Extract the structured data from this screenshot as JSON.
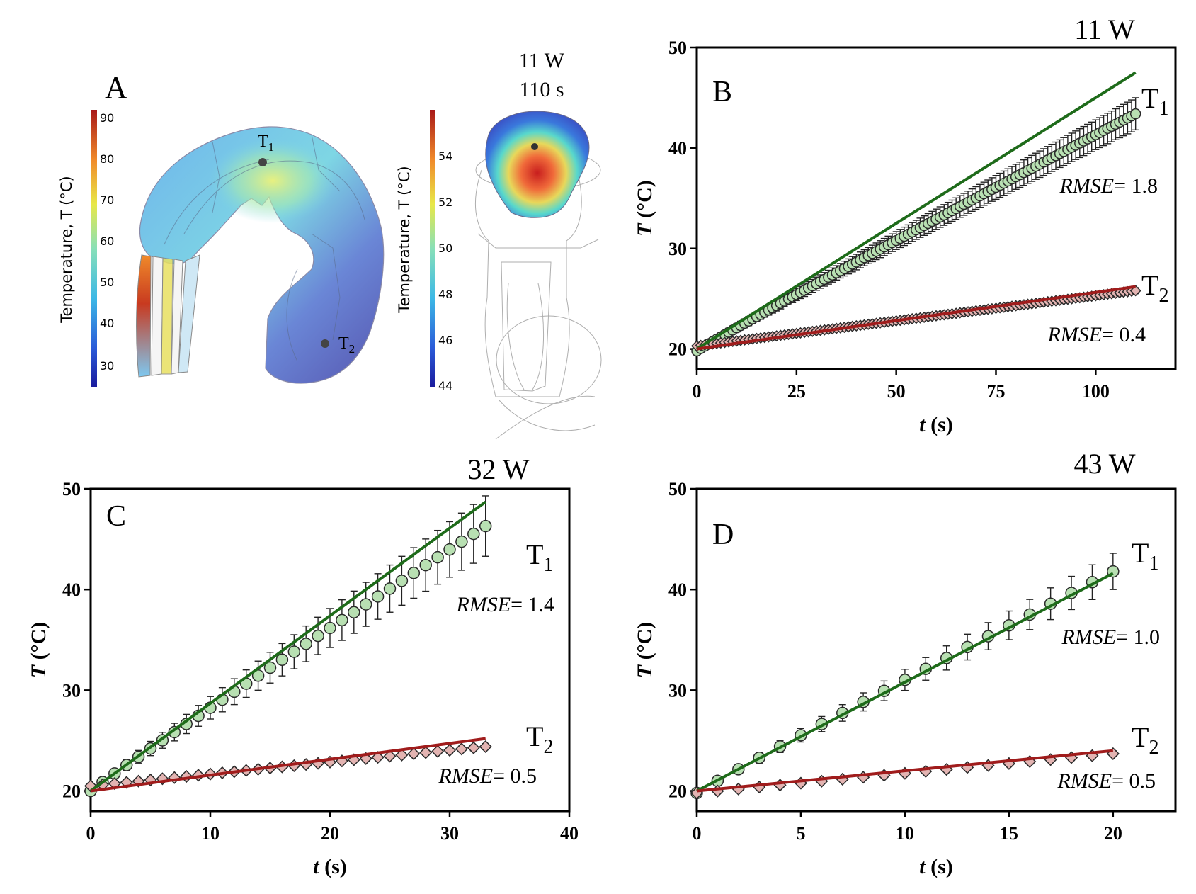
{
  "panel_a": {
    "letter": "A",
    "power_label": "11 W",
    "time_label": "110 s",
    "colorbar_left": {
      "label": "Temperature, T (°C)",
      "ticks": [
        "90",
        "80",
        "70",
        "60",
        "50",
        "40",
        "30"
      ]
    },
    "colorbar_right": {
      "label": "Temperature, T (°C)",
      "ticks": [
        "54",
        "52",
        "50",
        "48",
        "46",
        "44"
      ]
    },
    "probe_t1": {
      "main": "T",
      "sub": "1"
    },
    "probe_t2": {
      "main": "T",
      "sub": "2"
    }
  },
  "colors": {
    "model_t1": "#1e6b1a",
    "model_t2": "#a01c1c",
    "marker_t1": "#b8e0b2",
    "marker_t2": "#e3b4b2",
    "axis": "#000000"
  },
  "chart_data": [
    {
      "id": "B",
      "type": "line",
      "title": "11 W",
      "panel_letter": "B",
      "xlabel": "t (s)",
      "ylabel": "T (°C)",
      "xlim": [
        0,
        120
      ],
      "ylim": [
        18,
        50
      ],
      "xticks": [
        0,
        25,
        50,
        75,
        100
      ],
      "yticks": [
        20,
        30,
        40,
        50
      ],
      "x_max": 110,
      "dt": 1,
      "series": [
        {
          "name": "T1 measured",
          "label_main": "T",
          "label_sub": "1",
          "marker": "circle",
          "start": 19.8,
          "end": 43.4,
          "err_start": 0.3,
          "err_end": 1.6
        },
        {
          "name": "T2 measured",
          "label_main": "T",
          "label_sub": "2",
          "marker": "diamond",
          "start": 20.3,
          "end": 25.8,
          "err_start": 0.1,
          "err_end": 0.3
        }
      ],
      "models": [
        {
          "name": "T1 model",
          "x": [
            0,
            110
          ],
          "y": [
            20.0,
            47.5
          ]
        },
        {
          "name": "T2 model",
          "x": [
            0,
            110
          ],
          "y": [
            20.0,
            26.2
          ]
        }
      ],
      "annotations": {
        "rmse_t1": "RMSE= 1.8",
        "rmse_t2": "RMSE= 0.4"
      }
    },
    {
      "id": "C",
      "type": "line",
      "title": "32 W",
      "panel_letter": "C",
      "xlabel": "t (s)",
      "ylabel": "T (°C)",
      "xlim": [
        0,
        40
      ],
      "ylim": [
        18,
        50
      ],
      "xticks": [
        0,
        10,
        20,
        30,
        40
      ],
      "yticks": [
        20,
        30,
        40,
        50
      ],
      "x_max": 33,
      "dt": 1,
      "series": [
        {
          "name": "T1 measured",
          "label_main": "T",
          "label_sub": "1",
          "marker": "circle",
          "start": 20.0,
          "end": 46.3,
          "err_start": 0.3,
          "err_end": 3.0
        },
        {
          "name": "T2 measured",
          "label_main": "T",
          "label_sub": "2",
          "marker": "diamond",
          "start": 20.5,
          "end": 24.4,
          "err_start": 0.1,
          "err_end": 0.3
        }
      ],
      "models": [
        {
          "name": "T1 model",
          "x": [
            0,
            33
          ],
          "y": [
            20.0,
            48.7
          ]
        },
        {
          "name": "T2 model",
          "x": [
            0,
            33
          ],
          "y": [
            20.0,
            25.2
          ]
        }
      ],
      "annotations": {
        "rmse_t1": "RMSE= 1.4",
        "rmse_t2": "RMSE= 0.5"
      }
    },
    {
      "id": "D",
      "type": "line",
      "title": "43 W",
      "panel_letter": "D",
      "xlabel": "t (s)",
      "ylabel": "T (°C)",
      "xlim": [
        0,
        23
      ],
      "ylim": [
        18,
        50
      ],
      "xticks": [
        0,
        5,
        10,
        15,
        20
      ],
      "yticks": [
        20,
        30,
        40,
        50
      ],
      "x_max": 20,
      "dt": 1,
      "series": [
        {
          "name": "T1 measured",
          "label_main": "T",
          "label_sub": "1",
          "marker": "circle",
          "start": 19.8,
          "end": 41.8,
          "err_start": 0.3,
          "err_end": 1.8
        },
        {
          "name": "T2 measured",
          "label_main": "T",
          "label_sub": "2",
          "marker": "diamond",
          "start": 19.8,
          "end": 23.7,
          "err_start": 0.1,
          "err_end": 0.3
        }
      ],
      "models": [
        {
          "name": "T1 model",
          "x": [
            0,
            20
          ],
          "y": [
            20.0,
            41.6
          ]
        },
        {
          "name": "T2 model",
          "x": [
            0,
            20
          ],
          "y": [
            20.0,
            24.0
          ]
        }
      ],
      "annotations": {
        "rmse_t1": "RMSE= 1.0",
        "rmse_t2": "RMSE= 0.5"
      }
    }
  ]
}
